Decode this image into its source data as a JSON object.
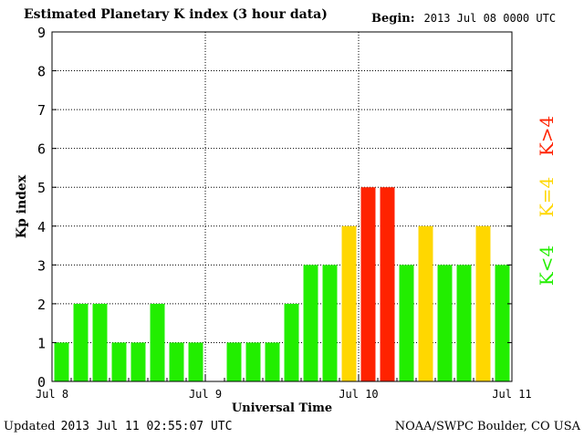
{
  "header": {
    "title": "Estimated Planetary K index (3 hour data)",
    "begin_label": "Begin:",
    "begin_value": "2013 Jul 08 0000 UTC"
  },
  "footer": {
    "updated_label": "Updated",
    "updated_value": "2013 Jul 11 02:55:07 UTC",
    "credit": "NOAA/SWPC Boulder, CO USA"
  },
  "colors": {
    "low": "#22ee00",
    "moderate": "#ffd700",
    "high": "#ff2200"
  },
  "chart_data": {
    "type": "bar",
    "title": "Estimated Planetary K index (3 hour data)",
    "xlabel": "Universal Time",
    "ylabel": "Kp index",
    "ylim": [
      0,
      9
    ],
    "yticks": [
      "0",
      "1",
      "2",
      "3",
      "4",
      "5",
      "6",
      "7",
      "8",
      "9"
    ],
    "xtick_labels": [
      "Jul 8",
      "Jul 9",
      "Jul 10",
      "Jul 11"
    ],
    "grid": true,
    "legend": {
      "placement": "right",
      "entries": [
        {
          "label": "K<4",
          "color": "#22ee00"
        },
        {
          "label": "K=4",
          "color": "#ffd700"
        },
        {
          "label": "K>4",
          "color": "#ff2200"
        }
      ]
    },
    "values": [
      1,
      2,
      2,
      1,
      1,
      2,
      1,
      1,
      0,
      1,
      1,
      1,
      2,
      3,
      3,
      4,
      5,
      5,
      3,
      4,
      3,
      3,
      4,
      3
    ]
  }
}
